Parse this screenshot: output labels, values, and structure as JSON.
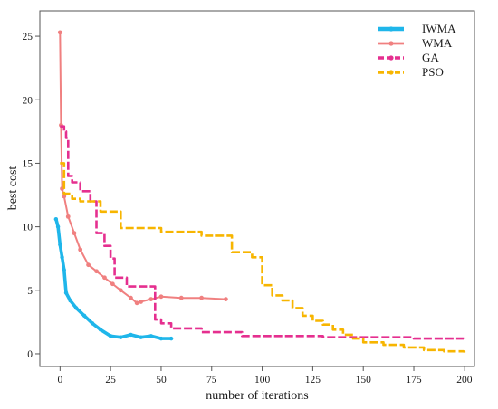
{
  "chart_data": {
    "type": "line",
    "title": "",
    "xlabel": "number of iterations",
    "ylabel": "best cost",
    "xlim": [
      -10,
      205
    ],
    "ylim": [
      -1,
      27
    ],
    "xticks": [
      0,
      25,
      50,
      75,
      100,
      125,
      150,
      175,
      200
    ],
    "xtick_labels": [
      "0",
      "25",
      "50",
      "75",
      "100",
      "125",
      "150",
      "175",
      "200"
    ],
    "yticks": [
      0,
      5,
      10,
      15,
      20,
      25
    ],
    "ytick_labels": [
      "0",
      "5",
      "10",
      "15",
      "20",
      "25"
    ],
    "grid": false,
    "legend_position": "top-right",
    "series": [
      {
        "name": "IWMA",
        "color": "#1fb6ea",
        "style": "solid-thick-markers",
        "x": [
          -2,
          -1,
          0,
          1,
          2,
          3,
          5,
          8,
          12,
          16,
          20,
          25,
          30,
          35,
          40,
          45,
          50,
          55
        ],
        "y": [
          10.6,
          10.0,
          8.6,
          7.6,
          6.6,
          4.8,
          4.2,
          3.6,
          3.0,
          2.4,
          1.9,
          1.4,
          1.3,
          1.5,
          1.3,
          1.4,
          1.2,
          1.2
        ]
      },
      {
        "name": "WMA",
        "color": "#f08080",
        "style": "solid-markers",
        "x": [
          0,
          0.5,
          1,
          2,
          4,
          7,
          10,
          14,
          18,
          22,
          26,
          30,
          35,
          38,
          40,
          45,
          50,
          60,
          70,
          82
        ],
        "y": [
          25.3,
          18.0,
          13.0,
          12.4,
          10.8,
          9.5,
          8.2,
          7.0,
          6.5,
          6.0,
          5.5,
          5.0,
          4.4,
          4.0,
          4.1,
          4.3,
          4.5,
          4.4,
          4.4,
          4.3
        ]
      },
      {
        "name": "GA",
        "color": "#e52f8f",
        "style": "dashed-steps",
        "x": [
          0,
          2,
          3,
          4,
          6,
          10,
          15,
          18,
          22,
          25,
          27,
          33,
          35,
          47,
          50,
          55,
          70,
          90,
          130,
          150,
          175,
          200
        ],
        "y": [
          17.9,
          17.5,
          17.0,
          14.0,
          13.5,
          12.8,
          12.0,
          9.5,
          8.5,
          7.5,
          6.0,
          5.3,
          5.3,
          2.7,
          2.4,
          2.0,
          1.7,
          1.4,
          1.3,
          1.3,
          1.2,
          1.1
        ]
      },
      {
        "name": "PSO",
        "color": "#f7b500",
        "style": "dashed-steps",
        "x": [
          0,
          2,
          6,
          10,
          20,
          30,
          50,
          70,
          85,
          95,
          100,
          105,
          110,
          115,
          120,
          125,
          130,
          135,
          140,
          145,
          150,
          160,
          170,
          180,
          190,
          200
        ],
        "y": [
          15.0,
          12.6,
          12.2,
          12.0,
          11.2,
          9.9,
          9.6,
          9.3,
          8.0,
          7.6,
          5.4,
          4.6,
          4.2,
          3.6,
          3.0,
          2.6,
          2.3,
          1.9,
          1.5,
          1.2,
          0.9,
          0.7,
          0.5,
          0.3,
          0.2,
          0.1
        ]
      }
    ]
  }
}
